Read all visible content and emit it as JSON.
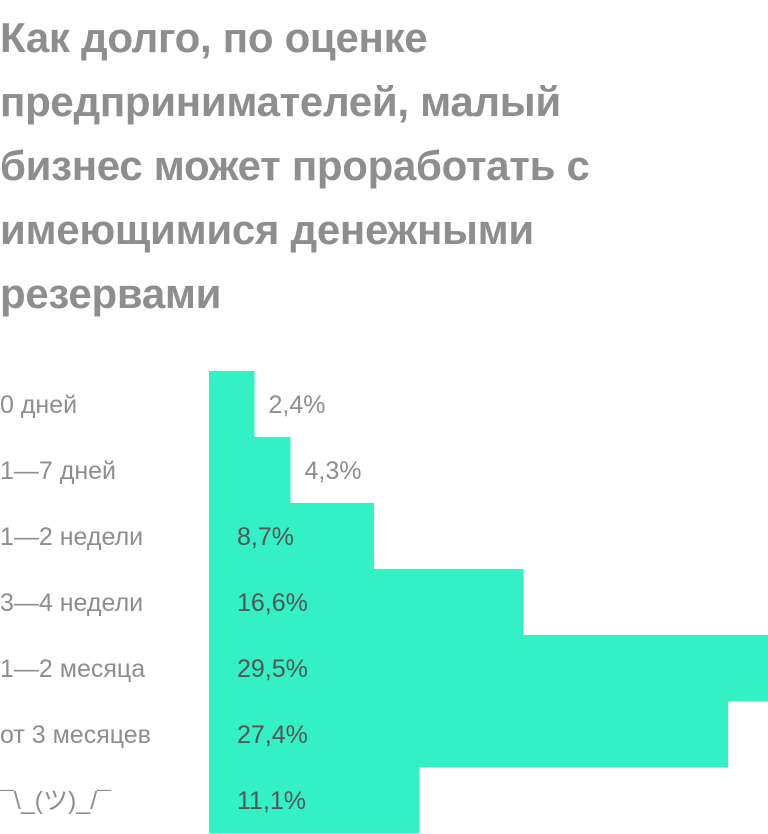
{
  "chart_data": {
    "type": "bar",
    "orientation": "horizontal",
    "title": "Как долго, по оценке предпринимателей, малый бизнес может проработать с имеющимися денежными резервами",
    "categories": [
      "0 дней",
      "1—7 дней",
      "1—2 недели",
      "3—4 недели",
      "1—2 месяца",
      "от 3 месяцев",
      "¯\\_(ツ)_/¯"
    ],
    "values": [
      2.4,
      4.3,
      8.7,
      16.6,
      29.5,
      27.4,
      11.1
    ],
    "value_labels": [
      "2,4%",
      "4,3%",
      "8,7%",
      "16,6%",
      "29,5%",
      "27,4%",
      "11,1%"
    ],
    "xlim": [
      0,
      29.5
    ],
    "grid": false,
    "legend": "none",
    "colors": {
      "bar": "#33f0c5",
      "title": "#8e8e8e",
      "label": "#8e8e8e",
      "value_inside": "#555555",
      "value_outside": "#8e8e8e"
    }
  }
}
